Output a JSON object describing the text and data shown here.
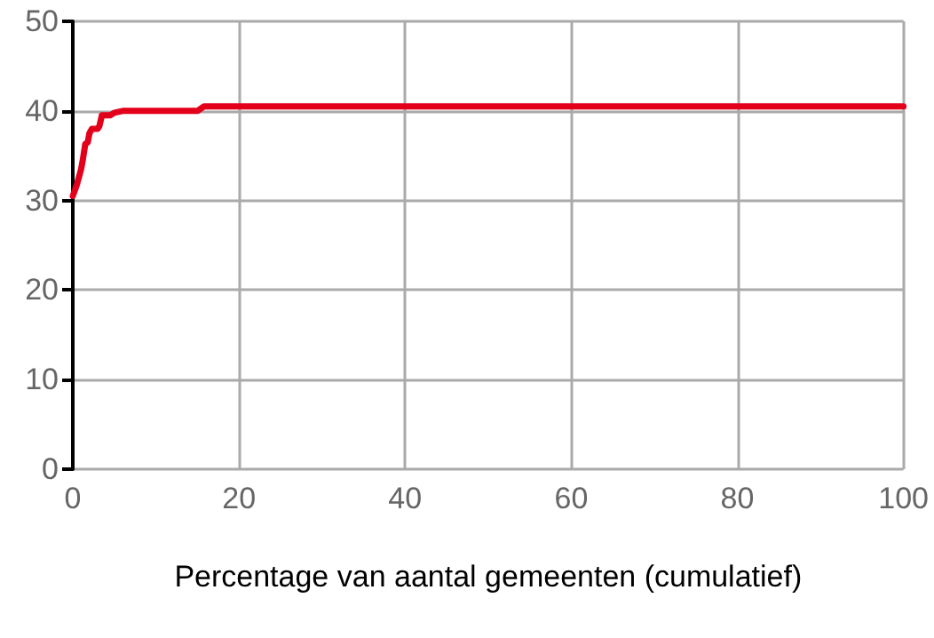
{
  "chart_data": {
    "type": "line",
    "xlabel": "Percentage van aantal gemeenten (cumulatief)",
    "x": [
      0,
      0.5,
      1,
      1.2,
      1.5,
      1.8,
      2,
      2.3,
      3,
      3.2,
      3.5,
      4.5,
      5,
      6,
      15,
      15.8,
      100
    ],
    "series": [
      {
        "color": "#e3001b",
        "values": [
          30.5,
          31.8,
          33.5,
          34.5,
          36.3,
          36.5,
          37.5,
          38,
          38,
          38.3,
          39.5,
          39.5,
          39.8,
          40,
          40,
          40.5,
          40.5
        ]
      }
    ],
    "xlim": [
      0,
      100
    ],
    "xticks": [
      0,
      20,
      40,
      60,
      80,
      100
    ],
    "ylim": [
      0,
      50
    ],
    "yticks": [
      0,
      10,
      20,
      30,
      40,
      50
    ],
    "grid": true,
    "marker": "none",
    "line_style": "solid"
  }
}
